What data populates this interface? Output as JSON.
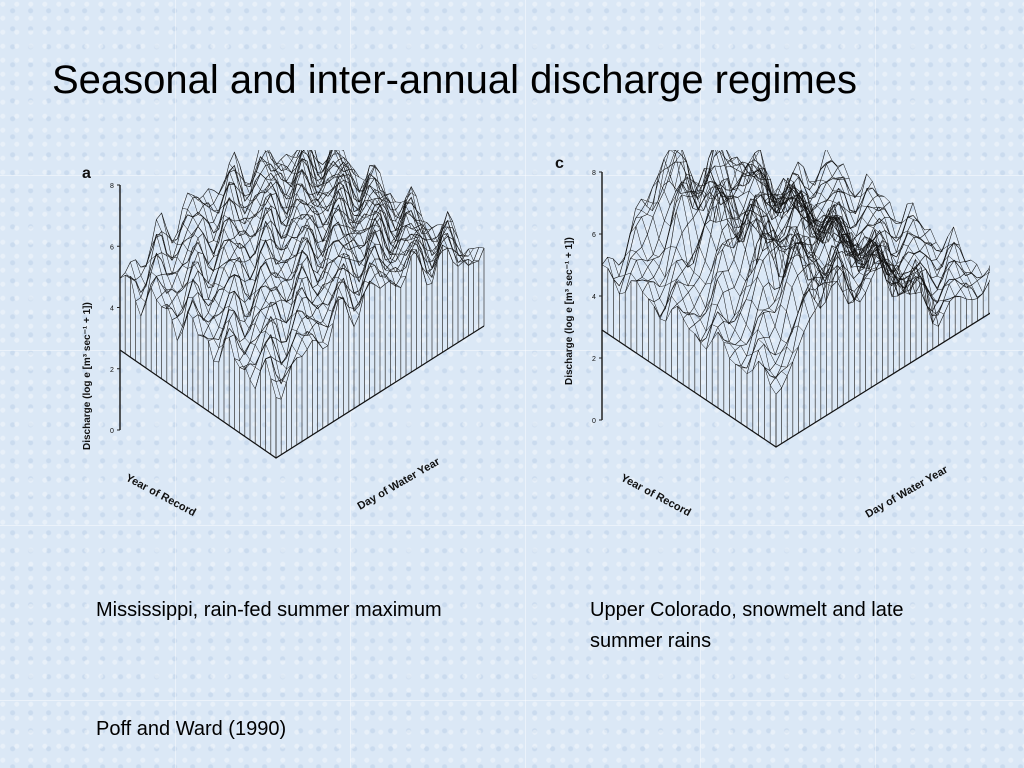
{
  "slide": {
    "title": "Seasonal and inter-annual discharge regimes",
    "captions": {
      "left": "Mississippi, rain-fed summer maximum",
      "right": "Upper Colorado, snowmelt and late summer rains"
    },
    "citation": "Poff and Ward (1990)"
  },
  "figures": {
    "a": {
      "panel_label": "a",
      "y_label": "Discharge (log e [m³ sec⁻¹ + 1])",
      "x_label": "Day of Water Year",
      "z_label": "Year of Record",
      "y_ticks": [
        "0",
        "2",
        "4",
        "6",
        "8"
      ]
    },
    "c": {
      "panel_label": "c",
      "y_label": "Discharge (log e [m³ sec⁻¹ + 1])",
      "x_label": "Day of Water Year",
      "z_label": "Year of Record",
      "y_ticks": [
        "0",
        "2",
        "4",
        "6",
        "8"
      ]
    }
  }
}
